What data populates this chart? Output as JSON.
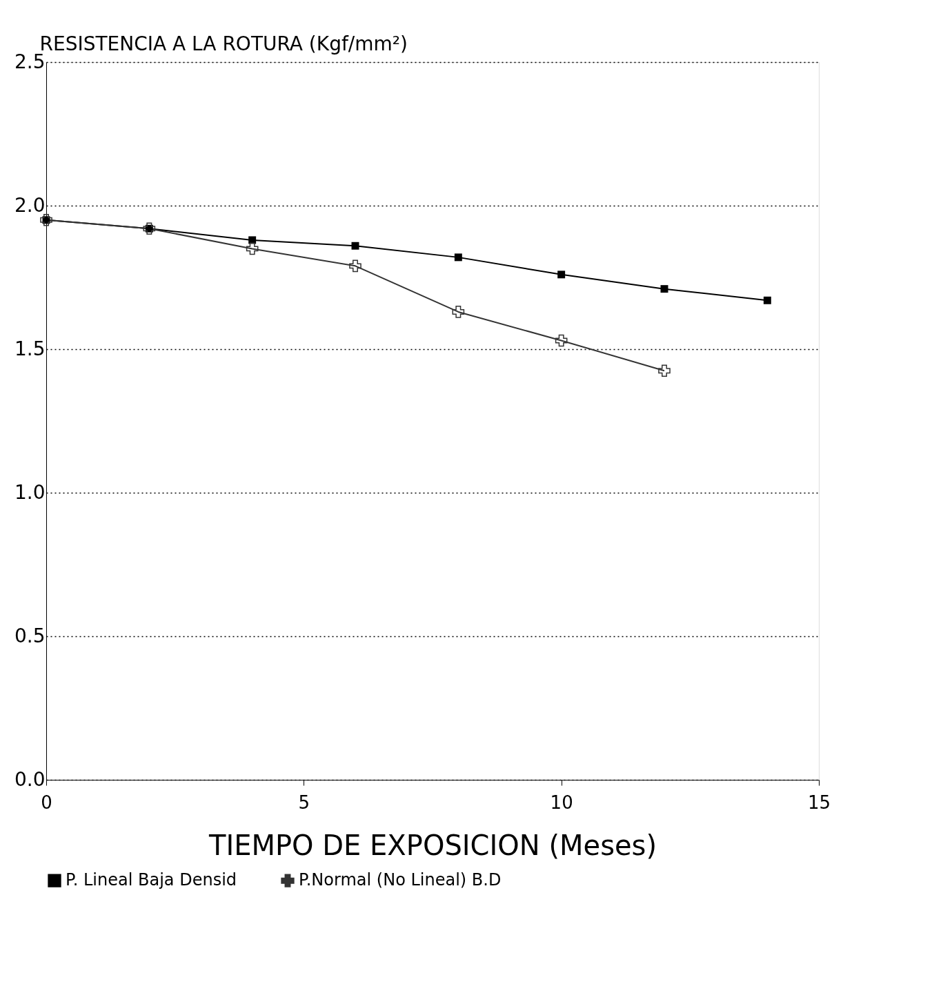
{
  "chart_data": {
    "type": "line",
    "ylabel": "RESISTENCIA A LA ROTURA (Kgf/mm²)",
    "xlabel": "TIEMPO DE EXPOSICION (Meses)",
    "x": [
      0,
      2,
      4,
      6,
      8,
      10,
      12,
      14
    ],
    "series": [
      {
        "name": "P. Lineal Baja Densid",
        "color": "#000000",
        "marker": "square",
        "values": [
          1.95,
          1.92,
          1.88,
          1.86,
          1.82,
          1.76,
          1.71,
          1.67
        ]
      },
      {
        "name": "P.Normal (No Lineal) B.D",
        "color": "#333333",
        "marker": "cross",
        "x": [
          0,
          2,
          4,
          6,
          8,
          10,
          12
        ],
        "values": [
          1.95,
          1.92,
          1.85,
          1.79,
          1.63,
          1.53,
          1.425
        ]
      }
    ],
    "xlim": [
      0,
      15
    ],
    "xticks": [
      0,
      5,
      10,
      15
    ],
    "ylim": [
      0,
      2.5
    ],
    "yticks": [
      {
        "value": 0,
        "label": "0.0"
      },
      {
        "value": 0.5,
        "label": "0.5"
      },
      {
        "value": 1,
        "label": "1.0"
      },
      {
        "value": 1.5,
        "label": "1.5"
      },
      {
        "value": 2,
        "label": "2.0"
      },
      {
        "value": 2.5,
        "label": "2.5"
      }
    ],
    "grid": "y",
    "legend": "bottom",
    "line_style": "solid"
  }
}
